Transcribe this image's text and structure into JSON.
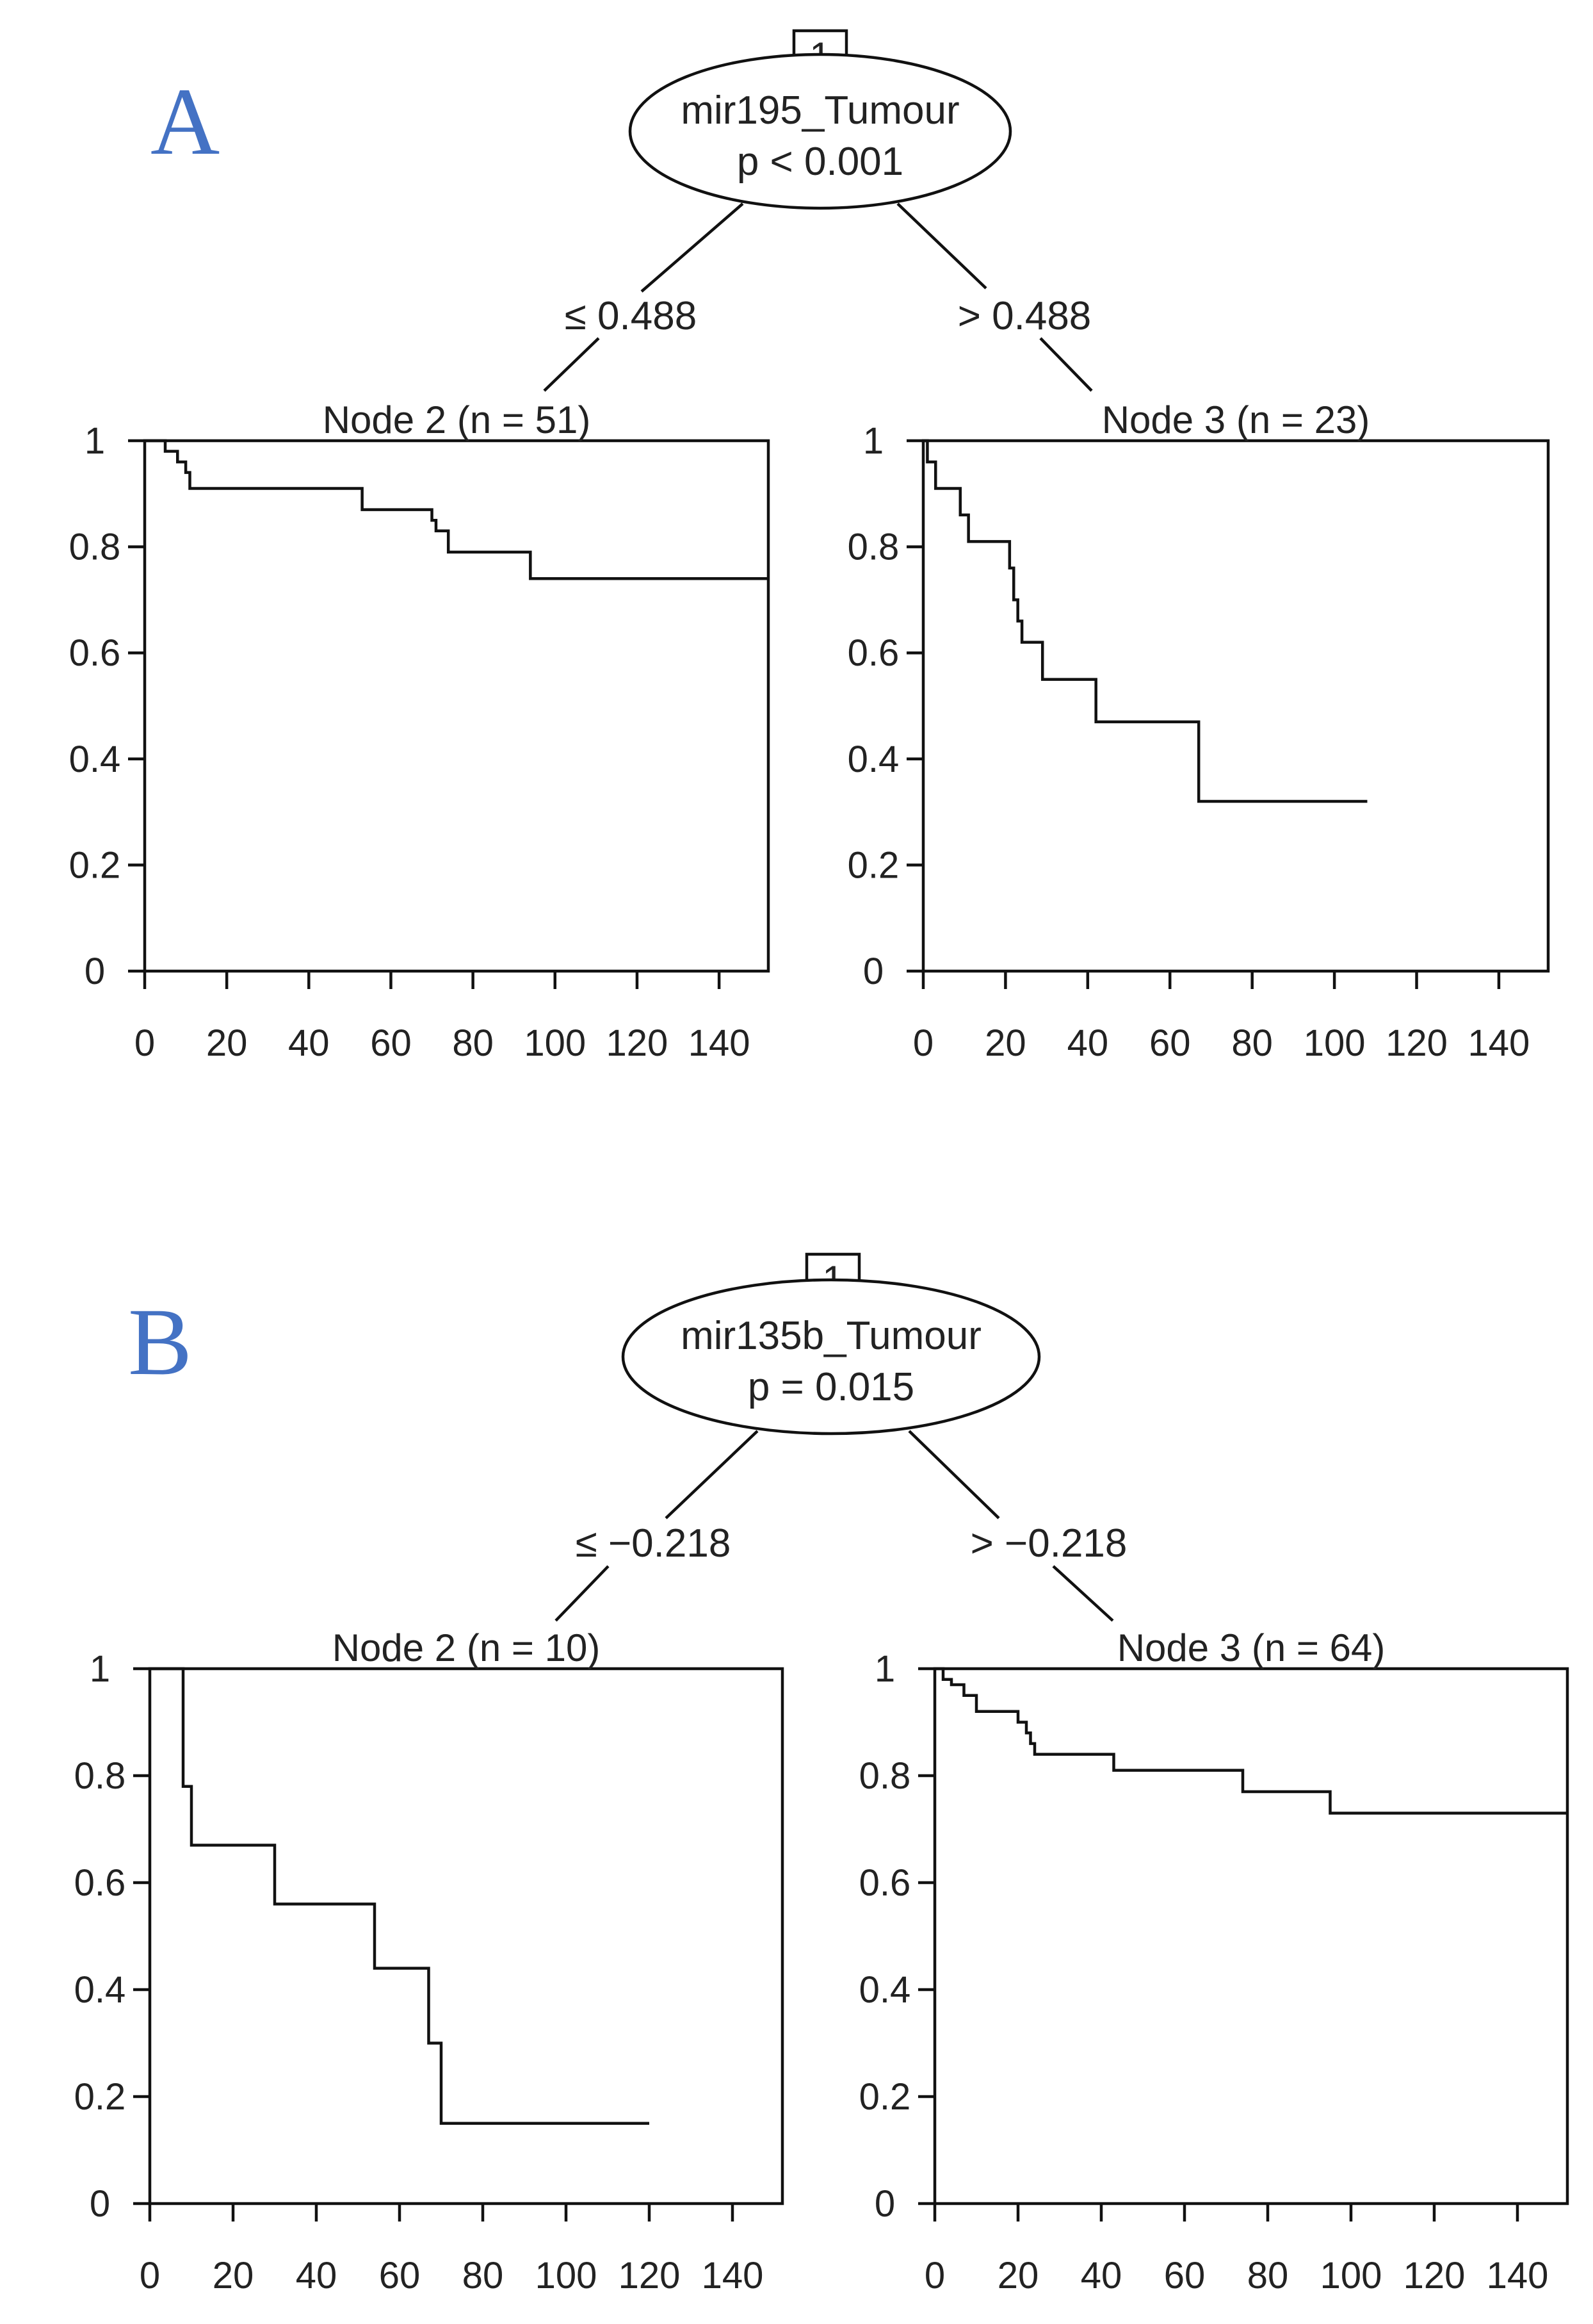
{
  "chart_data": [
    {
      "panel_label": "A",
      "type": "tree",
      "root": {
        "id": "1",
        "variable": "mir195_Tumour",
        "p_text": "p < 0.001"
      },
      "split_left_text": "≤ 0.488",
      "split_right_text": "> 0.488",
      "nodes": [
        {
          "title": "Node 2 (n = 51)",
          "type": "line",
          "step": true,
          "x": [
            0,
            5,
            8,
            10,
            11,
            53,
            70,
            71,
            74,
            94,
            152
          ],
          "y": [
            1,
            0.98,
            0.96,
            0.94,
            0.91,
            0.87,
            0.85,
            0.83,
            0.79,
            0.74,
            0.74
          ],
          "xlim": [
            0,
            152
          ],
          "ylim": [
            0,
            1
          ],
          "xticks": [
            "0",
            "20",
            "40",
            "60",
            "80",
            "100",
            "120",
            "140"
          ],
          "yticks": [
            "0",
            "0.2",
            "0.4",
            "0.6",
            "0.8",
            "1"
          ]
        },
        {
          "title": "Node 3 (n = 23)",
          "type": "line",
          "step": true,
          "x": [
            0,
            1,
            3,
            9,
            11,
            21,
            22,
            23,
            24,
            29,
            42,
            67,
            108
          ],
          "y": [
            1,
            0.96,
            0.91,
            0.86,
            0.81,
            0.76,
            0.7,
            0.66,
            0.62,
            0.55,
            0.47,
            0.32,
            0.32
          ],
          "xlim": [
            0,
            152
          ],
          "ylim": [
            0,
            1
          ],
          "xticks": [
            "0",
            "20",
            "40",
            "60",
            "80",
            "100",
            "120",
            "140"
          ],
          "yticks": [
            "0",
            "0.2",
            "0.4",
            "0.6",
            "0.8",
            "1"
          ]
        }
      ]
    },
    {
      "panel_label": "B",
      "type": "tree",
      "root": {
        "id": "1",
        "variable": "mir135b_Tumour",
        "p_text": "p = 0.015"
      },
      "split_left_text": "≤ −0.218",
      "split_right_text": "> −0.218",
      "nodes": [
        {
          "title": "Node 2 (n = 10)",
          "type": "line",
          "step": true,
          "x": [
            0,
            8,
            10,
            30,
            54,
            67,
            70,
            120
          ],
          "y": [
            1,
            0.78,
            0.67,
            0.56,
            0.44,
            0.3,
            0.15,
            0.15
          ],
          "xlim": [
            0,
            152
          ],
          "ylim": [
            0,
            1
          ],
          "xticks": [
            "0",
            "20",
            "40",
            "60",
            "80",
            "100",
            "120",
            "140"
          ],
          "yticks": [
            "0",
            "0.2",
            "0.4",
            "0.6",
            "0.8",
            "1"
          ]
        },
        {
          "title": "Node 3 (n = 64)",
          "type": "line",
          "step": true,
          "x": [
            0,
            2,
            4,
            7,
            10,
            20,
            22,
            23,
            24,
            43,
            74,
            95,
            152
          ],
          "y": [
            1,
            0.98,
            0.97,
            0.95,
            0.92,
            0.9,
            0.88,
            0.86,
            0.84,
            0.81,
            0.77,
            0.73,
            0.73
          ],
          "xlim": [
            0,
            152
          ],
          "ylim": [
            0,
            1
          ],
          "xticks": [
            "0",
            "20",
            "40",
            "60",
            "80",
            "100",
            "120",
            "140"
          ],
          "yticks": [
            "0",
            "0.2",
            "0.4",
            "0.6",
            "0.8",
            "1"
          ]
        }
      ]
    }
  ]
}
